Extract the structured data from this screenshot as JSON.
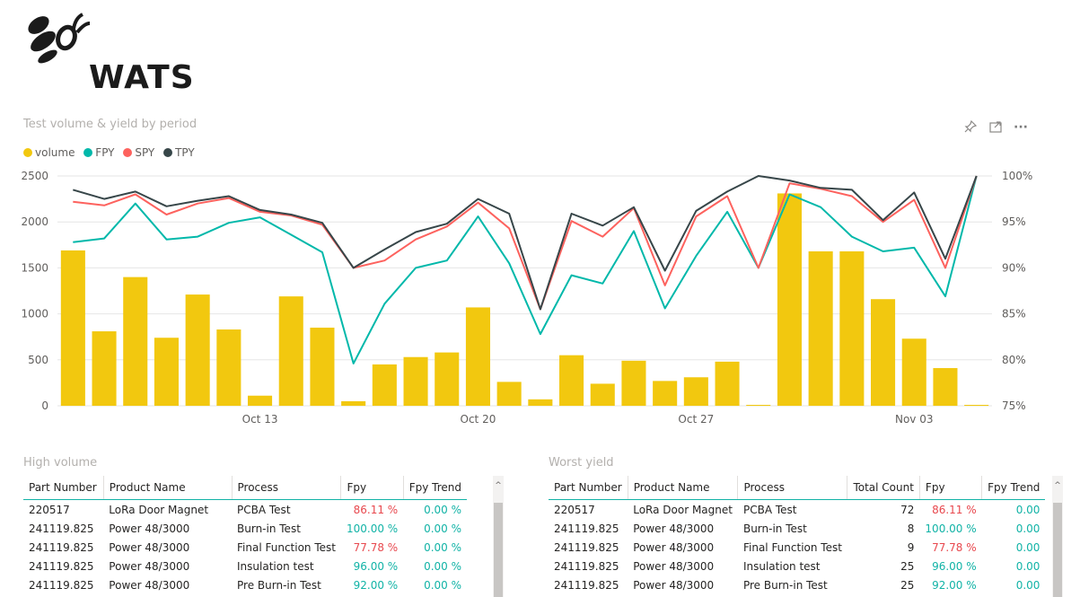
{
  "logo": {
    "text": "WATS"
  },
  "chart_title": "Test volume & yield by period",
  "toolbar": {
    "pin_icon": "pin-icon",
    "focus_icon": "focus-mode-icon",
    "more_icon": "more-options-icon",
    "more_label": "···"
  },
  "chart_data": {
    "type": "bar+line",
    "title": "Test volume & yield by period",
    "legend": [
      "volume",
      "FPY",
      "SPY",
      "TPY"
    ],
    "colors": {
      "volume": "#F2C80F",
      "FPY": "#01B8AA",
      "SPY": "#FD625E",
      "TPY": "#374649"
    },
    "x_ticks": [
      {
        "index": 6,
        "label": "Oct 13"
      },
      {
        "index": 13,
        "label": "Oct 20"
      },
      {
        "index": 20,
        "label": "Oct 27"
      },
      {
        "index": 27,
        "label": "Nov 03"
      }
    ],
    "y_left": {
      "min": 0,
      "max": 2500,
      "ticks": [
        0,
        500,
        1000,
        1500,
        2000,
        2500
      ]
    },
    "y_right": {
      "min": 75,
      "max": 100,
      "ticks": [
        75,
        80,
        85,
        90,
        95,
        100
      ],
      "suffix": "%"
    },
    "volume": [
      1690,
      810,
      1400,
      740,
      1210,
      830,
      110,
      1190,
      850,
      50,
      450,
      530,
      580,
      1070,
      260,
      70,
      550,
      240,
      490,
      270,
      310,
      480,
      10,
      2310,
      1680,
      1680,
      1160,
      730,
      410,
      10
    ],
    "series": [
      {
        "name": "FPY",
        "values": [
          92.8,
          93.2,
          97.0,
          93.1,
          93.4,
          94.9,
          95.5,
          93.6,
          91.7,
          79.6,
          86.1,
          90.0,
          90.8,
          95.6,
          90.5,
          82.8,
          89.2,
          88.3,
          94.0,
          85.6,
          91.3,
          96.1,
          90.0,
          98.0,
          96.6,
          93.4,
          91.8,
          92.2,
          86.9,
          100.0
        ]
      },
      {
        "name": "SPY",
        "values": [
          97.2,
          96.8,
          98.0,
          95.8,
          97.0,
          97.6,
          96.1,
          95.7,
          94.7,
          90.0,
          90.8,
          93.1,
          94.5,
          97.1,
          94.3,
          85.5,
          95.1,
          93.4,
          96.5,
          88.1,
          95.6,
          97.8,
          90.0,
          99.2,
          98.6,
          97.8,
          95.0,
          97.4,
          90.0,
          100.0
        ]
      },
      {
        "name": "TPY",
        "values": [
          98.5,
          97.5,
          98.3,
          96.7,
          97.3,
          97.8,
          96.3,
          95.8,
          94.9,
          90.0,
          92.0,
          93.9,
          94.8,
          97.5,
          95.9,
          85.5,
          95.9,
          94.6,
          96.6,
          89.7,
          96.2,
          98.3,
          100.0,
          99.5,
          98.7,
          98.5,
          95.2,
          98.2,
          91.0,
          100.0
        ]
      }
    ]
  },
  "tables": {
    "high_volume": {
      "title": "High volume",
      "columns": [
        "Part Number",
        "Product Name",
        "Process",
        "Fpy",
        "Fpy Trend"
      ],
      "rows": [
        [
          "220517",
          "LoRa Door Magnet",
          "PCBA Test",
          "86.11 %",
          "0.00 %"
        ],
        [
          "241119.825",
          "Power 48/3000",
          "Burn-in Test",
          "100.00 %",
          "0.00 %"
        ],
        [
          "241119.825",
          "Power 48/3000",
          "Final Function Test",
          "77.78 %",
          "0.00 %"
        ],
        [
          "241119.825",
          "Power 48/3000",
          "Insulation test",
          "96.00 %",
          "0.00 %"
        ],
        [
          "241119.825",
          "Power 48/3000",
          "Pre Burn-in Test",
          "92.00 %",
          "0.00 %"
        ]
      ],
      "fpy_status": [
        "bad",
        "good",
        "bad",
        "good",
        "good"
      ]
    },
    "worst_yield": {
      "title": "Worst yield",
      "columns": [
        "Part Number",
        "Product Name",
        "Process",
        "Total Count",
        "Fpy",
        "Fpy Trend"
      ],
      "rows": [
        [
          "220517",
          "LoRa Door Magnet",
          "PCBA Test",
          "72",
          "86.11 %",
          "0.00"
        ],
        [
          "241119.825",
          "Power 48/3000",
          "Burn-in Test",
          "8",
          "100.00 %",
          "0.00"
        ],
        [
          "241119.825",
          "Power 48/3000",
          "Final Function Test",
          "9",
          "77.78 %",
          "0.00"
        ],
        [
          "241119.825",
          "Power 48/3000",
          "Insulation test",
          "25",
          "96.00 %",
          "0.00"
        ],
        [
          "241119.825",
          "Power 48/3000",
          "Pre Burn-in Test",
          "25",
          "92.00 %",
          "0.00"
        ]
      ],
      "fpy_status": [
        "bad",
        "good",
        "bad",
        "good",
        "good"
      ]
    }
  },
  "scrollbar": {
    "arrow": "^"
  }
}
